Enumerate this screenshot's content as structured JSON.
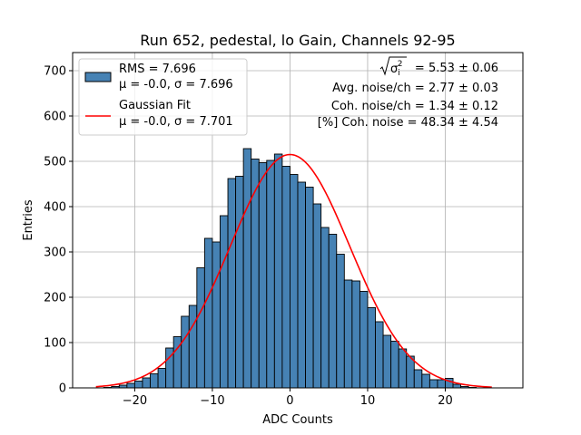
{
  "chart_data": {
    "type": "bar",
    "title": "Run 652, pedestal, lo Gain, Channels 92-95",
    "xlabel": "ADC Counts",
    "ylabel": "Entries",
    "xlim": [
      -28,
      30
    ],
    "ylim": [
      0,
      740
    ],
    "x_ticks": [
      -20,
      -10,
      0,
      10,
      20
    ],
    "y_ticks": [
      0,
      100,
      200,
      300,
      400,
      500,
      600,
      700
    ],
    "grid": true,
    "legend_position": "top-left",
    "colors": {
      "bars": "#4682b4",
      "bar_edge": "#000000",
      "fit": "#ff0000"
    },
    "histogram": {
      "name_lines": [
        "RMS = 7.696",
        "μ = -0.0, σ = 7.696"
      ],
      "bin_start": -25,
      "bin_width": 1,
      "counts": [
        0,
        1,
        3,
        6,
        10,
        15,
        22,
        31,
        43,
        88,
        113,
        158,
        182,
        265,
        330,
        322,
        380,
        462,
        467,
        528,
        505,
        497,
        502,
        516,
        489,
        471,
        454,
        443,
        406,
        354,
        339,
        295,
        238,
        236,
        213,
        177,
        146,
        116,
        103,
        86,
        70,
        40,
        30,
        18,
        18,
        21,
        8,
        3,
        1
      ]
    },
    "fit": {
      "name_lines": [
        "Gaussian Fit",
        "μ = -0.0, σ = 7.701"
      ],
      "mu": 0.0,
      "sigma": 7.701,
      "amplitude": 515,
      "x_range": [
        -25,
        26
      ]
    },
    "annotations": {
      "sqrt_label": "σ",
      "sqrt_sup": "2",
      "sqrt_sub": "i",
      "sqrt_value": " = 5.53 ± 0.06",
      "line2": "Avg. noise/ch = 2.77 ± 0.03",
      "line3": "Coh. noise/ch = 1.34 ± 0.12",
      "line4": "[%] Coh. noise = 48.34 ± 4.54"
    }
  }
}
